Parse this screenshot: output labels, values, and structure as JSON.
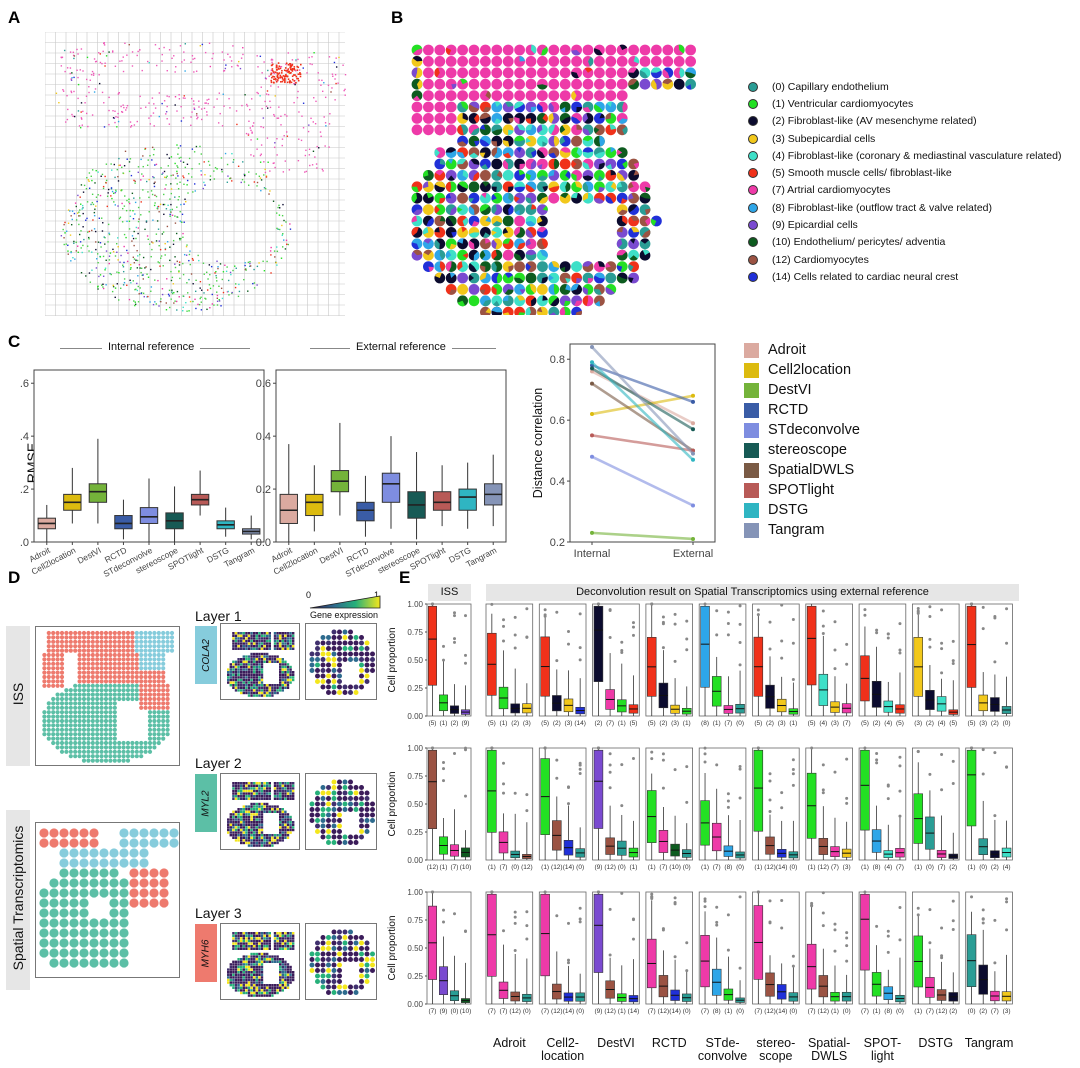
{
  "panels": {
    "a": "A",
    "b": "B",
    "c": "C",
    "d": "D",
    "e": "E"
  },
  "legend_b": {
    "items": [
      {
        "label": "(0) Capillary endothelium",
        "color": "#2a9d95"
      },
      {
        "label": "(1) Ventricular cardiomyocytes",
        "color": "#23e023"
      },
      {
        "label": "(2) Fibroblast-like (AV mesenchyme related)",
        "color": "#0b0b2e"
      },
      {
        "label": "(3) Subepicardial cells",
        "color": "#f2c81b"
      },
      {
        "label": "(4) Fibroblast-like (coronary & mediastinal vasculature related)",
        "color": "#3ee0c8"
      },
      {
        "label": "(5) Smooth muscle cells/ fibroblast-like",
        "color": "#f0311a"
      },
      {
        "label": "(7) Artrial cardiomyocytes",
        "color": "#ee3aa8"
      },
      {
        "label": "(8) Fibroblast-like (outflow tract & valve related)",
        "color": "#2ea6e8"
      },
      {
        "label": "(9) Epicardial cells",
        "color": "#7a4ad0"
      },
      {
        "label": "(10) Endothelium/ pericytes/ adventia",
        "color": "#0d5b1f"
      },
      {
        "label": "(12) Cardiomyocytes",
        "color": "#9b5343"
      },
      {
        "label": "(14) Cells related to cardiac neural crest",
        "color": "#2030d8"
      }
    ]
  },
  "panel_c": {
    "internal_title": "Internal reference",
    "external_title": "External reference",
    "ylabel": "RMSE",
    "corr_ylabel": "Distance correlation",
    "corr_x": [
      "Internal",
      "External"
    ]
  },
  "legend_c": {
    "items": [
      {
        "label": "Adroit",
        "color": "#dbaaa0"
      },
      {
        "label": "Cell2location",
        "color": "#dcbb0f"
      },
      {
        "label": "DestVI",
        "color": "#74b33a"
      },
      {
        "label": "RCTD",
        "color": "#3a5ca6"
      },
      {
        "label": "STdeconvolve",
        "color": "#7e8de0"
      },
      {
        "label": "stereoscope",
        "color": "#175a55"
      },
      {
        "label": "SpatialDWLS",
        "color": "#7a5a45"
      },
      {
        "label": "SPOTlight",
        "color": "#b85a57"
      },
      {
        "label": "DSTG",
        "color": "#2fb5c2"
      },
      {
        "label": "Tangram",
        "color": "#8594b7"
      }
    ]
  },
  "panel_d": {
    "iss_label": "ISS",
    "st_label": "Spatial Transcriptomics",
    "colorbar_min": "0",
    "colorbar_max": "1",
    "colorbar_title": "Gene expression",
    "layers": [
      {
        "title": "Layer 1",
        "gene": "COLA2",
        "color": "#86ccdc"
      },
      {
        "title": "Layer 2",
        "gene": "MYL2",
        "color": "#5cbfa6"
      },
      {
        "title": "Layer 3",
        "gene": "MYH6",
        "color": "#ee7a6e"
      }
    ],
    "layer_colors": {
      "l1": "#86ccdc",
      "l2": "#5cbfa6",
      "l3": "#ee7a6e"
    }
  },
  "panel_e": {
    "iss_header": "ISS",
    "header": "Deconvolution result on Spatial Transcriptomics using external reference",
    "ylabel": "Cell proportion",
    "yticks": [
      "0.00",
      "0.25",
      "0.50",
      "0.75",
      "1.00"
    ],
    "methods": [
      "Adroit",
      "Cell2-\nlocation",
      "DestVI",
      "RCTD",
      "STde-\nconvolve",
      "stereo-\nscope",
      "Spatial-\nDWLS",
      "SPOT-\nlight",
      "DSTG",
      "Tangram"
    ],
    "method_labels": [
      {
        "l1": "Adroit",
        "l2": ""
      },
      {
        "l1": "Cell2-",
        "l2": "location"
      },
      {
        "l1": "DestVI",
        "l2": ""
      },
      {
        "l1": "RCTD",
        "l2": ""
      },
      {
        "l1": "STde-",
        "l2": "convolve"
      },
      {
        "l1": "stereo-",
        "l2": "scope"
      },
      {
        "l1": "Spatial-",
        "l2": "DWLS"
      },
      {
        "l1": "SPOT-",
        "l2": "light"
      },
      {
        "l1": "DSTG",
        "l2": ""
      },
      {
        "l1": "Tangram",
        "l2": ""
      }
    ],
    "xlabels": [
      [
        [
          "(5)",
          "(1)",
          "(2)",
          "(9)"
        ],
        [
          "(5)",
          "(1)",
          "(2)",
          "(3)"
        ],
        [
          "(5)",
          "(2)",
          "(3)",
          "(14)"
        ],
        [
          "(2)",
          "(7)",
          "(1)",
          "(5)"
        ],
        [
          "(5)",
          "(2)",
          "(3)",
          "(1)"
        ],
        [
          "(8)",
          "(1)",
          "(7)",
          "(0)"
        ],
        [
          "(5)",
          "(2)",
          "(3)",
          "(1)"
        ],
        [
          "(5)",
          "(4)",
          "(3)",
          "(7)"
        ],
        [
          "(5)",
          "(2)",
          "(4)",
          "(5)"
        ],
        [
          "(3)",
          "(2)",
          "(4)",
          "(5)"
        ],
        [
          "(5)",
          "(3)",
          "(2)",
          "(0)"
        ]
      ],
      [
        [
          "(12)",
          "(1)",
          "(7)",
          "(10)"
        ],
        [
          "(1)",
          "(7)",
          "(0)",
          "(12)"
        ],
        [
          "(1)",
          "(12)",
          "(14)",
          "(0)"
        ],
        [
          "(9)",
          "(12)",
          "(0)",
          "(1)"
        ],
        [
          "(1)",
          "(7)",
          "(10)",
          "(0)"
        ],
        [
          "(1)",
          "(7)",
          "(8)",
          "(0)"
        ],
        [
          "(1)",
          "(12)",
          "(14)",
          "(0)"
        ],
        [
          "(1)",
          "(12)",
          "(7)",
          "(3)"
        ],
        [
          "(1)",
          "(8)",
          "(4)",
          "(7)"
        ],
        [
          "(1)",
          "(0)",
          "(7)",
          "(2)"
        ],
        [
          "(1)",
          "(0)",
          "(2)",
          "(4)"
        ]
      ],
      [
        [
          "(7)",
          "(9)",
          "(0)",
          "(10)"
        ],
        [
          "(7)",
          "(7)",
          "(12)",
          "(0)"
        ],
        [
          "(7)",
          "(12)",
          "(14)",
          "(0)"
        ],
        [
          "(9)",
          "(12)",
          "(1)",
          "(14)"
        ],
        [
          "(7)",
          "(12)",
          "(14)",
          "(0)"
        ],
        [
          "(7)",
          "(8)",
          "(1)",
          "(0)"
        ],
        [
          "(7)",
          "(12)",
          "(14)",
          "(0)"
        ],
        [
          "(7)",
          "(12)",
          "(1)",
          "(0)"
        ],
        [
          "(7)",
          "(1)",
          "(8)",
          "(0)"
        ],
        [
          "(1)",
          "(7)",
          "(12)",
          "(2)"
        ],
        [
          "(0)",
          "(2)",
          "(7)",
          "(3)"
        ]
      ]
    ]
  },
  "chart_data": [
    {
      "type": "box",
      "title": "Internal reference",
      "ylabel": "RMSE",
      "ylim": [
        0,
        0.65
      ],
      "categories": [
        "Adroit",
        "Cell2location",
        "DestVI",
        "RCTD",
        "STdeconvolve",
        "stereoscope",
        "SPOTlight",
        "DSTG",
        "Tangram"
      ],
      "q1": [
        0.05,
        0.12,
        0.15,
        0.05,
        0.07,
        0.05,
        0.14,
        0.05,
        0.03
      ],
      "median": [
        0.07,
        0.15,
        0.19,
        0.07,
        0.095,
        0.08,
        0.16,
        0.065,
        0.04
      ],
      "q3": [
        0.09,
        0.18,
        0.22,
        0.1,
        0.13,
        0.11,
        0.18,
        0.08,
        0.05
      ],
      "min": [
        0.0,
        0.07,
        0.07,
        0.01,
        0.0,
        0.0,
        0.1,
        0.02,
        0.01
      ],
      "max": [
        0.14,
        0.28,
        0.39,
        0.16,
        0.24,
        0.21,
        0.27,
        0.13,
        0.1
      ]
    },
    {
      "type": "box",
      "title": "External reference",
      "ylabel": "RMSE",
      "ylim": [
        0,
        0.65
      ],
      "categories": [
        "Adroit",
        "Cell2location",
        "DestVI",
        "RCTD",
        "STdeconvolve",
        "stereoscope",
        "SPOTlight",
        "DSTG",
        "Tangram"
      ],
      "q1": [
        0.07,
        0.1,
        0.19,
        0.08,
        0.15,
        0.09,
        0.12,
        0.12,
        0.14
      ],
      "median": [
        0.12,
        0.15,
        0.23,
        0.12,
        0.22,
        0.14,
        0.15,
        0.17,
        0.18
      ],
      "q3": [
        0.18,
        0.18,
        0.27,
        0.15,
        0.26,
        0.19,
        0.19,
        0.2,
        0.22
      ],
      "min": [
        0.0,
        0.04,
        0.1,
        0.02,
        0.05,
        0.01,
        0.06,
        0.05,
        0.06
      ],
      "max": [
        0.37,
        0.29,
        0.45,
        0.25,
        0.4,
        0.34,
        0.29,
        0.3,
        0.33
      ]
    },
    {
      "type": "line",
      "ylabel": "Distance correlation",
      "x": [
        "Internal",
        "External"
      ],
      "ylim": [
        0.2,
        0.85
      ],
      "series": [
        {
          "name": "Adroit",
          "values": [
            0.76,
            0.59
          ]
        },
        {
          "name": "Cell2location",
          "values": [
            0.62,
            0.68
          ]
        },
        {
          "name": "DestVI",
          "values": [
            0.23,
            0.21
          ]
        },
        {
          "name": "RCTD",
          "values": [
            0.78,
            0.66
          ]
        },
        {
          "name": "STdeconvolve",
          "values": [
            0.48,
            0.32
          ]
        },
        {
          "name": "stereoscope",
          "values": [
            0.77,
            0.57
          ]
        },
        {
          "name": "SpatialDWLS",
          "values": [
            0.72,
            0.5
          ]
        },
        {
          "name": "SPOTlight",
          "values": [
            0.55,
            0.5
          ]
        },
        {
          "name": "DSTG",
          "values": [
            0.79,
            0.47
          ]
        },
        {
          "name": "Tangram",
          "values": [
            0.84,
            0.49
          ]
        }
      ]
    }
  ]
}
